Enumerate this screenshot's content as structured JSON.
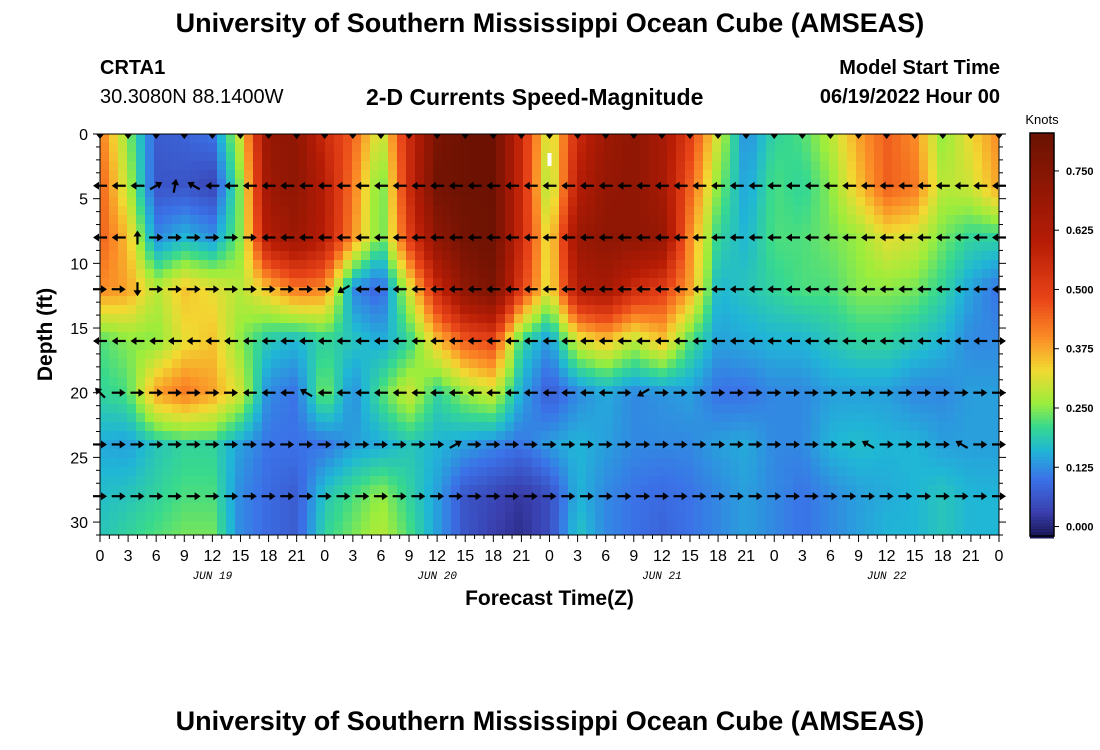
{
  "header": {
    "title": "University of Southern Mississippi Ocean Cube (AMSEAS)",
    "station": "CRTA1",
    "coords": "30.3080N  88.1400W",
    "subtitle": "2-D Currents Speed-Magnitude",
    "model_start_label": "Model Start Time",
    "model_start_value": "06/19/2022 Hour 00"
  },
  "footer": {
    "title": "University of Southern Mississippi Ocean Cube (AMSEAS)"
  },
  "chart_data": {
    "type": "heatmap",
    "title": "2-D Currents Speed-Magnitude",
    "xlabel": "Forecast Time(Z)",
    "ylabel": "Depth (ft)",
    "x_hours_range": [
      0,
      96
    ],
    "ylim": [
      0,
      31
    ],
    "y_ticks": [
      0,
      5,
      10,
      15,
      20,
      25,
      30
    ],
    "x_tick_labels": [
      "0",
      "3",
      "6",
      "9",
      "12",
      "15",
      "18",
      "21",
      "0",
      "3",
      "6",
      "9",
      "12",
      "15",
      "18",
      "21",
      "0",
      "3",
      "6",
      "9",
      "12",
      "15",
      "18",
      "21",
      "0",
      "3",
      "6",
      "9",
      "12",
      "15",
      "18",
      "21",
      "0"
    ],
    "day_labels": [
      {
        "label": "JUN 19",
        "hour": 12
      },
      {
        "label": "JUN 20",
        "hour": 36
      },
      {
        "label": "JUN 21",
        "hour": 60
      },
      {
        "label": "JUN 22",
        "hour": 84
      }
    ],
    "colorbar": {
      "units": "Knots",
      "ticks": [
        "0.750",
        "0.625",
        "0.500",
        "0.375",
        "0.250",
        "0.125",
        "0.000"
      ],
      "tick_values": [
        0.75,
        0.625,
        0.5,
        0.375,
        0.25,
        0.125,
        0.0
      ],
      "range": [
        -0.02,
        0.83
      ],
      "stops": [
        {
          "v": -0.02,
          "c": "#191656"
        },
        {
          "v": 0.03,
          "c": "#3a3fae"
        },
        {
          "v": 0.1,
          "c": "#3b72e8"
        },
        {
          "v": 0.16,
          "c": "#20b6d6"
        },
        {
          "v": 0.21,
          "c": "#38d98e"
        },
        {
          "v": 0.26,
          "c": "#9ced3c"
        },
        {
          "v": 0.33,
          "c": "#f2d932"
        },
        {
          "v": 0.4,
          "c": "#fb8a26"
        },
        {
          "v": 0.48,
          "c": "#e84418"
        },
        {
          "v": 0.6,
          "c": "#b61c05"
        },
        {
          "v": 0.83,
          "c": "#6a1203"
        }
      ]
    },
    "depths_ft": [
      0,
      4,
      8,
      12,
      16,
      20,
      24,
      28,
      31
    ],
    "speed_knots": [
      [
        0.42,
        0.25,
        0.07,
        0.08,
        0.1,
        0.3,
        0.7,
        0.72,
        0.55,
        0.45,
        0.28,
        0.55,
        0.78,
        0.82,
        0.82,
        0.55,
        0.28,
        0.55,
        0.68,
        0.72,
        0.65,
        0.5,
        0.3,
        0.12,
        0.2,
        0.22,
        0.28,
        0.38,
        0.45,
        0.4,
        0.25,
        0.33,
        0.4
      ],
      [
        0.45,
        0.28,
        0.06,
        0.06,
        0.04,
        0.25,
        0.68,
        0.72,
        0.6,
        0.42,
        0.22,
        0.55,
        0.8,
        0.82,
        0.82,
        0.55,
        0.25,
        0.6,
        0.7,
        0.72,
        0.65,
        0.45,
        0.25,
        0.14,
        0.22,
        0.2,
        0.25,
        0.35,
        0.45,
        0.42,
        0.28,
        0.3,
        0.38
      ],
      [
        0.45,
        0.35,
        0.12,
        0.16,
        0.13,
        0.25,
        0.62,
        0.68,
        0.6,
        0.4,
        0.22,
        0.5,
        0.72,
        0.8,
        0.82,
        0.55,
        0.3,
        0.68,
        0.72,
        0.72,
        0.7,
        0.4,
        0.2,
        0.16,
        0.22,
        0.22,
        0.24,
        0.26,
        0.32,
        0.3,
        0.24,
        0.2,
        0.2
      ],
      [
        0.4,
        0.38,
        0.28,
        0.35,
        0.32,
        0.28,
        0.35,
        0.42,
        0.4,
        0.12,
        0.08,
        0.3,
        0.55,
        0.72,
        0.78,
        0.5,
        0.3,
        0.62,
        0.65,
        0.55,
        0.5,
        0.38,
        0.16,
        0.18,
        0.2,
        0.22,
        0.22,
        0.25,
        0.25,
        0.24,
        0.2,
        0.14,
        0.1
      ],
      [
        0.22,
        0.25,
        0.25,
        0.32,
        0.35,
        0.25,
        0.18,
        0.16,
        0.2,
        0.18,
        0.15,
        0.2,
        0.35,
        0.45,
        0.48,
        0.2,
        0.13,
        0.3,
        0.35,
        0.28,
        0.35,
        0.22,
        0.14,
        0.15,
        0.16,
        0.16,
        0.18,
        0.2,
        0.2,
        0.18,
        0.16,
        0.12,
        0.12
      ],
      [
        0.2,
        0.22,
        0.38,
        0.42,
        0.38,
        0.3,
        0.12,
        0.1,
        0.25,
        0.12,
        0.22,
        0.3,
        0.2,
        0.26,
        0.3,
        0.15,
        0.07,
        0.12,
        0.15,
        0.12,
        0.13,
        0.14,
        0.1,
        0.1,
        0.12,
        0.12,
        0.14,
        0.14,
        0.14,
        0.12,
        0.12,
        0.14,
        0.14
      ],
      [
        0.15,
        0.14,
        0.18,
        0.2,
        0.2,
        0.14,
        0.1,
        0.1,
        0.1,
        0.14,
        0.15,
        0.18,
        0.16,
        0.14,
        0.12,
        0.1,
        0.14,
        0.16,
        0.14,
        0.12,
        0.12,
        0.12,
        0.14,
        0.15,
        0.12,
        0.12,
        0.16,
        0.17,
        0.16,
        0.16,
        0.14,
        0.14,
        0.14
      ],
      [
        0.17,
        0.18,
        0.2,
        0.22,
        0.22,
        0.12,
        0.09,
        0.07,
        0.18,
        0.22,
        0.26,
        0.2,
        0.14,
        0.06,
        0.04,
        0.02,
        0.05,
        0.16,
        0.12,
        0.1,
        0.09,
        0.1,
        0.12,
        0.14,
        0.12,
        0.1,
        0.12,
        0.14,
        0.15,
        0.16,
        0.18,
        0.16,
        0.16
      ],
      [
        0.18,
        0.2,
        0.22,
        0.24,
        0.24,
        0.12,
        0.09,
        0.07,
        0.2,
        0.24,
        0.28,
        0.22,
        0.14,
        0.06,
        0.03,
        0.01,
        0.05,
        0.18,
        0.12,
        0.1,
        0.08,
        0.1,
        0.12,
        0.14,
        0.12,
        0.1,
        0.12,
        0.14,
        0.16,
        0.16,
        0.18,
        0.16,
        0.16
      ]
    ],
    "arrow_depths_ft": [
      4,
      8,
      12,
      16,
      20,
      24,
      28
    ],
    "arrow_hours": [
      0,
      2,
      4,
      6,
      8,
      10,
      12,
      14,
      16,
      18,
      20,
      22,
      24,
      26,
      28,
      30,
      32,
      34,
      36,
      38,
      40,
      42,
      44,
      46,
      48,
      50,
      52,
      54,
      56,
      58,
      60,
      62,
      64,
      66,
      68,
      70,
      72,
      74,
      76,
      78,
      80,
      82,
      84,
      86,
      88,
      90,
      92,
      94,
      96
    ],
    "arrow_dirs_deg": [
      [
        180,
        180,
        180,
        30,
        80,
        150,
        180,
        180,
        180,
        180,
        180,
        180,
        180,
        180,
        180,
        180,
        180,
        180,
        180,
        180,
        180,
        180,
        180,
        180,
        180,
        180,
        180,
        180,
        180,
        180,
        180,
        180,
        180,
        180,
        180,
        180,
        180,
        180,
        180,
        180,
        180,
        180,
        180,
        180,
        180,
        180,
        180,
        180,
        180
      ],
      [
        180,
        180,
        90,
        0,
        0,
        0,
        0,
        0,
        0,
        180,
        180,
        180,
        180,
        180,
        180,
        180,
        180,
        180,
        180,
        180,
        180,
        180,
        180,
        180,
        180,
        180,
        180,
        180,
        180,
        180,
        180,
        180,
        180,
        180,
        180,
        180,
        180,
        180,
        180,
        180,
        180,
        180,
        180,
        180,
        180,
        180,
        180,
        180,
        180
      ],
      [
        0,
        0,
        -90,
        0,
        0,
        0,
        0,
        0,
        0,
        0,
        0,
        0,
        0,
        210,
        180,
        180,
        180,
        180,
        180,
        180,
        180,
        180,
        180,
        180,
        180,
        180,
        180,
        180,
        180,
        180,
        180,
        180,
        180,
        180,
        180,
        180,
        180,
        180,
        180,
        180,
        180,
        180,
        180,
        180,
        180,
        180,
        180,
        180,
        180
      ],
      [
        180,
        180,
        180,
        180,
        180,
        180,
        180,
        180,
        180,
        180,
        180,
        180,
        180,
        180,
        180,
        180,
        180,
        180,
        180,
        180,
        180,
        180,
        180,
        180,
        180,
        180,
        180,
        180,
        180,
        180,
        180,
        180,
        180,
        180,
        180,
        180,
        180,
        180,
        180,
        180,
        180,
        180,
        180,
        180,
        180,
        180,
        180,
        180,
        0
      ],
      [
        135,
        0,
        0,
        0,
        0,
        0,
        0,
        0,
        180,
        180,
        180,
        150,
        180,
        180,
        180,
        180,
        180,
        180,
        180,
        180,
        180,
        180,
        180,
        180,
        180,
        180,
        180,
        180,
        0,
        210,
        0,
        0,
        0,
        0,
        0,
        0,
        0,
        0,
        0,
        0,
        0,
        0,
        0,
        0,
        0,
        0,
        0,
        0,
        0
      ],
      [
        0,
        0,
        0,
        0,
        0,
        0,
        0,
        0,
        0,
        0,
        0,
        0,
        0,
        0,
        0,
        0,
        0,
        0,
        0,
        30,
        0,
        0,
        0,
        0,
        0,
        0,
        0,
        0,
        0,
        0,
        0,
        0,
        0,
        0,
        0,
        0,
        0,
        0,
        0,
        0,
        0,
        150,
        0,
        0,
        0,
        0,
        150,
        0,
        0
      ],
      [
        0,
        0,
        0,
        0,
        0,
        0,
        0,
        0,
        0,
        0,
        0,
        0,
        0,
        0,
        0,
        0,
        0,
        0,
        0,
        0,
        0,
        0,
        0,
        0,
        0,
        0,
        0,
        0,
        0,
        0,
        0,
        0,
        0,
        0,
        0,
        0,
        0,
        0,
        0,
        0,
        0,
        0,
        0,
        0,
        0,
        0,
        0,
        0,
        0
      ]
    ]
  }
}
